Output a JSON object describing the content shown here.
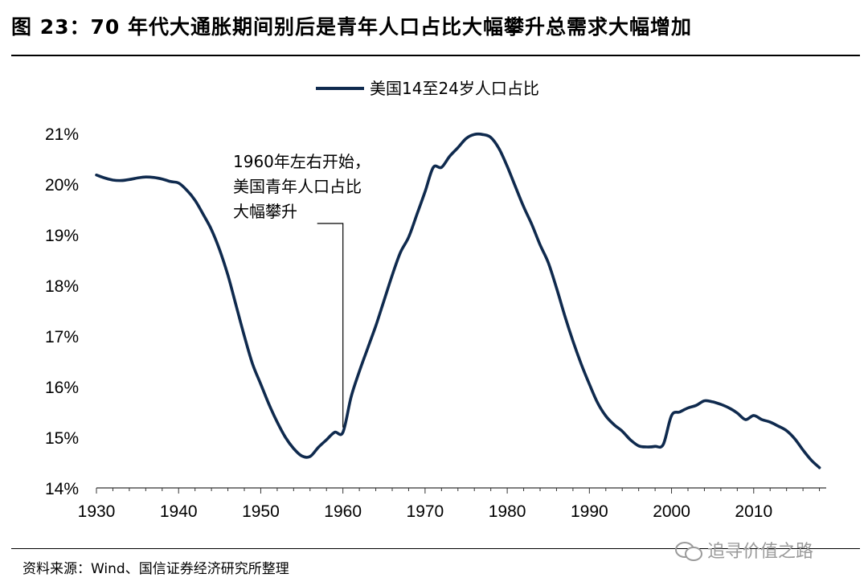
{
  "title": "图  23：70 年代大通胀期间别后是青年人口占比大幅攀升总需求大幅增加",
  "source": "资料来源：Wind、国信证券经济研究所整理",
  "watermark": "追寻价值之路",
  "colors": {
    "line": "#0f2a4e",
    "axis": "#333333"
  },
  "chart_data": {
    "type": "line",
    "title": "",
    "xlabel": "",
    "ylabel": "",
    "xlim": [
      1930,
      2018
    ],
    "ylim": [
      14,
      21
    ],
    "x_ticks": [
      "1930",
      "1940",
      "1950",
      "1960",
      "1970",
      "1980",
      "1990",
      "2000",
      "2010"
    ],
    "y_ticks": [
      "14%",
      "15%",
      "16%",
      "17%",
      "18%",
      "19%",
      "20%",
      "21%"
    ],
    "legend": "top-center",
    "grid": false,
    "annotation": {
      "x": 1960,
      "y": 15.1,
      "lines": [
        "1960年左右开始，",
        "美国青年人口占比",
        "大幅攀升"
      ]
    },
    "series": [
      {
        "name": "美国14至24岁人口占比",
        "x": [
          1930,
          1931,
          1932,
          1933,
          1934,
          1935,
          1936,
          1937,
          1938,
          1939,
          1940,
          1941,
          1942,
          1943,
          1944,
          1945,
          1946,
          1947,
          1948,
          1949,
          1950,
          1951,
          1952,
          1953,
          1954,
          1955,
          1956,
          1957,
          1958,
          1959,
          1960,
          1961,
          1962,
          1963,
          1964,
          1965,
          1966,
          1967,
          1968,
          1969,
          1970,
          1971,
          1972,
          1973,
          1974,
          1975,
          1976,
          1977,
          1978,
          1979,
          1980,
          1981,
          1982,
          1983,
          1984,
          1985,
          1986,
          1987,
          1988,
          1989,
          1990,
          1991,
          1992,
          1993,
          1994,
          1995,
          1996,
          1997,
          1998,
          1999,
          2000,
          2001,
          2002,
          2003,
          2004,
          2005,
          2006,
          2007,
          2008,
          2009,
          2010,
          2011,
          2012,
          2013,
          2014,
          2015,
          2016,
          2017,
          2018
        ],
        "y": [
          20.18,
          20.12,
          20.08,
          20.07,
          20.09,
          20.12,
          20.14,
          20.13,
          20.1,
          20.05,
          20.02,
          19.88,
          19.68,
          19.4,
          19.1,
          18.7,
          18.2,
          17.6,
          17.0,
          16.45,
          16.05,
          15.65,
          15.3,
          15.0,
          14.78,
          14.63,
          14.62,
          14.8,
          14.95,
          15.1,
          15.1,
          15.8,
          16.3,
          16.75,
          17.2,
          17.7,
          18.2,
          18.65,
          18.95,
          19.4,
          19.85,
          20.33,
          20.33,
          20.55,
          20.72,
          20.9,
          20.98,
          20.98,
          20.92,
          20.7,
          20.35,
          19.95,
          19.55,
          19.2,
          18.8,
          18.45,
          17.95,
          17.4,
          16.9,
          16.45,
          16.05,
          15.68,
          15.42,
          15.25,
          15.12,
          14.95,
          14.83,
          14.81,
          14.82,
          14.86,
          15.43,
          15.5,
          15.58,
          15.63,
          15.72,
          15.7,
          15.65,
          15.58,
          15.48,
          15.35,
          15.43,
          15.35,
          15.3,
          15.22,
          15.13,
          14.97,
          14.75,
          14.55,
          14.4
        ]
      }
    ]
  }
}
